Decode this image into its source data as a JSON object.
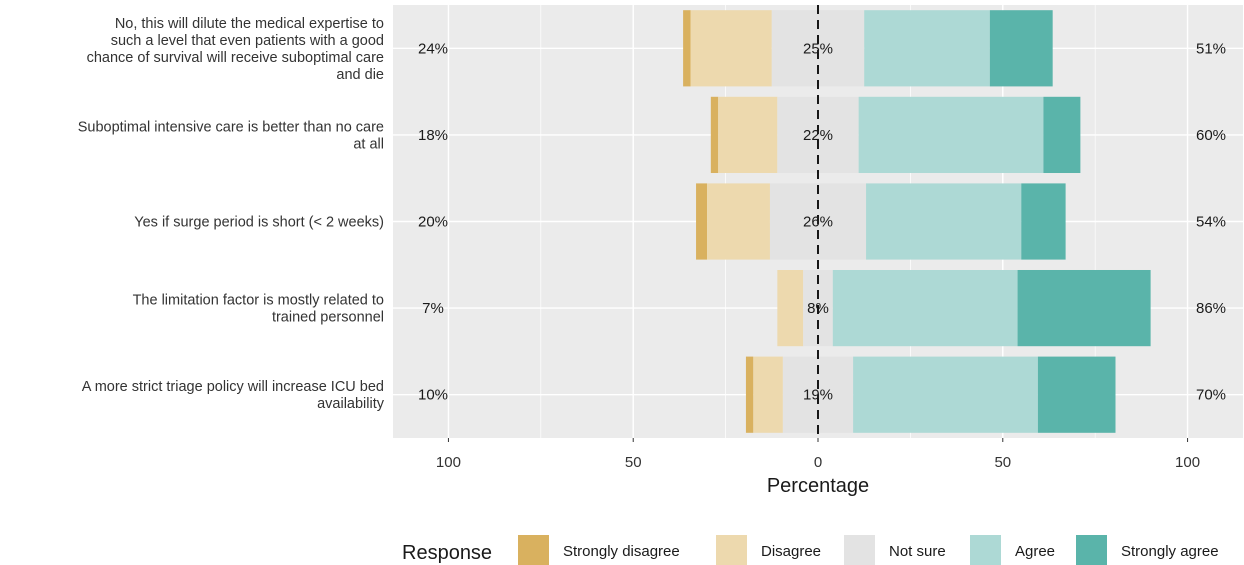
{
  "chart_data": {
    "type": "bar",
    "subtype": "diverging-stacked",
    "title": "",
    "xlabel": "Percentage",
    "ylabel": "",
    "xlim": [
      -115,
      115
    ],
    "xticks": [
      -100,
      -50,
      0,
      50,
      100
    ],
    "xtick_labels": [
      "100",
      "50",
      "0",
      "50",
      "100"
    ],
    "grid": true,
    "legend_position": "bottom",
    "legend_title": "Response",
    "series": [
      {
        "name": "Strongly disagree",
        "color": "#D9B15F",
        "values": [
          2,
          2,
          3,
          0,
          2
        ]
      },
      {
        "name": "Disagree",
        "color": "#EDD9AE",
        "values": [
          22,
          16,
          17,
          7,
          8
        ]
      },
      {
        "name": "Not sure",
        "color": "#E3E3E3",
        "values": [
          25,
          22,
          26,
          8,
          19
        ]
      },
      {
        "name": "Agree",
        "color": "#ADD9D5",
        "values": [
          34,
          50,
          42,
          50,
          50
        ]
      },
      {
        "name": "Strongly agree",
        "color": "#5AB4AA",
        "values": [
          17,
          10,
          12,
          36,
          21
        ]
      }
    ],
    "categories": [
      {
        "lines": [
          "No, this will dilute the medical expertise to",
          "such a level that even patients with a good",
          "chance of survival will receive suboptimal care",
          "and die"
        ],
        "left_pct": "24%",
        "center_pct": "25%",
        "right_pct": "51%"
      },
      {
        "lines": [
          "Suboptimal intensive care is better than no care",
          "at all"
        ],
        "left_pct": "18%",
        "center_pct": "22%",
        "right_pct": "60%"
      },
      {
        "lines": [
          "Yes if surge period is short (< 2 weeks)"
        ],
        "left_pct": "20%",
        "center_pct": "26%",
        "right_pct": "54%"
      },
      {
        "lines": [
          "The limitation factor is mostly related to",
          "trained personnel"
        ],
        "left_pct": "7%",
        "center_pct": "8%",
        "right_pct": "86%"
      },
      {
        "lines": [
          "A more strict triage policy will increase ICU bed",
          "availability"
        ],
        "left_pct": "10%",
        "center_pct": "19%",
        "right_pct": "70%"
      }
    ]
  }
}
